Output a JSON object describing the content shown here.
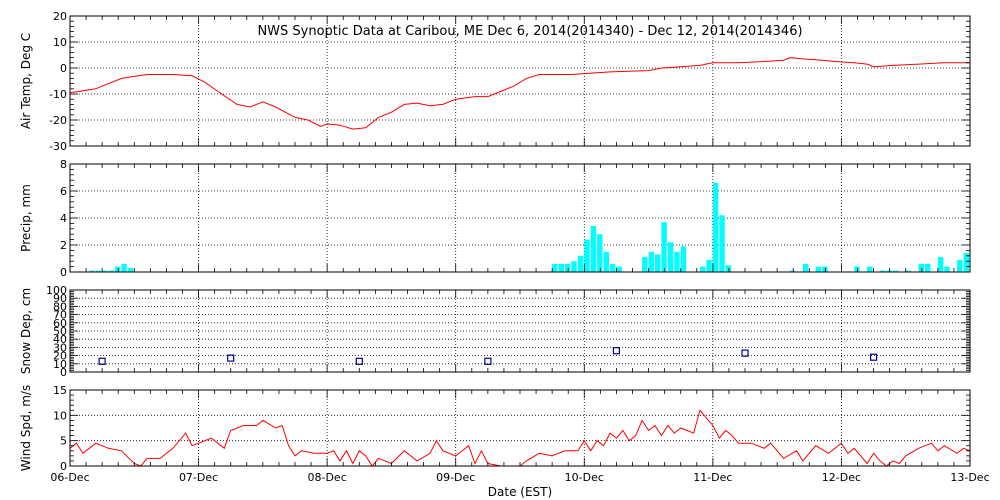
{
  "chart_data": {
    "type": "multi-panel",
    "title": "NWS Synoptic Data at Caribou, ME   Dec  6, 2014(2014340) - Dec 12, 2014(2014346)",
    "xlabel": "Date (EST)",
    "x_ticks": [
      "06-Dec",
      "07-Dec",
      "08-Dec",
      "09-Dec",
      "10-Dec",
      "11-Dec",
      "12-Dec",
      "13-Dec"
    ],
    "x_range_days": [
      0,
      7
    ],
    "grid": true,
    "panels": [
      {
        "id": "air_temp",
        "type": "line",
        "ylabel": "Air Temp, Deg C",
        "ylim": [
          -30,
          20
        ],
        "yticks": [
          -30,
          -20,
          -10,
          0,
          10,
          20
        ],
        "color": "#ff0000",
        "points": [
          [
            0.0,
            -9.5
          ],
          [
            0.2,
            -8
          ],
          [
            0.4,
            -4
          ],
          [
            0.6,
            -2.5
          ],
          [
            0.8,
            -2.5
          ],
          [
            0.95,
            -3
          ],
          [
            1.05,
            -5.5
          ],
          [
            1.15,
            -9
          ],
          [
            1.3,
            -14
          ],
          [
            1.4,
            -15
          ],
          [
            1.5,
            -13
          ],
          [
            1.6,
            -15
          ],
          [
            1.75,
            -19
          ],
          [
            1.85,
            -20
          ],
          [
            1.95,
            -22.5
          ],
          [
            2.0,
            -21.5
          ],
          [
            2.1,
            -22
          ],
          [
            2.2,
            -23.5
          ],
          [
            2.3,
            -23
          ],
          [
            2.4,
            -19
          ],
          [
            2.5,
            -17
          ],
          [
            2.6,
            -14
          ],
          [
            2.7,
            -13.5
          ],
          [
            2.8,
            -14.5
          ],
          [
            2.9,
            -14
          ],
          [
            3.0,
            -12
          ],
          [
            3.15,
            -11
          ],
          [
            3.25,
            -11
          ],
          [
            3.3,
            -10
          ],
          [
            3.45,
            -7
          ],
          [
            3.55,
            -4
          ],
          [
            3.65,
            -2.5
          ],
          [
            3.9,
            -2.5
          ],
          [
            4.2,
            -1.5
          ],
          [
            4.5,
            -1
          ],
          [
            4.6,
            0
          ],
          [
            4.75,
            0.5
          ],
          [
            4.9,
            1
          ],
          [
            5.0,
            2
          ],
          [
            5.2,
            2
          ],
          [
            5.4,
            2.5
          ],
          [
            5.55,
            3
          ],
          [
            5.6,
            4
          ],
          [
            5.7,
            3.5
          ],
          [
            5.85,
            3
          ],
          [
            5.95,
            2.5
          ],
          [
            6.1,
            2
          ],
          [
            6.2,
            1.5
          ],
          [
            6.25,
            0.5
          ],
          [
            6.4,
            1
          ],
          [
            6.6,
            1.5
          ],
          [
            6.8,
            2
          ],
          [
            7.0,
            2
          ]
        ]
      },
      {
        "id": "precip",
        "type": "bar",
        "ylabel": "Precip, mm",
        "ylim": [
          0,
          8
        ],
        "yticks": [
          0,
          2,
          4,
          6,
          8
        ],
        "color": "#00ffff",
        "bar_width_days": 0.0417,
        "bars": [
          [
            0.15,
            0.1
          ],
          [
            0.2,
            0.1
          ],
          [
            0.25,
            0.1
          ],
          [
            0.3,
            0.1
          ],
          [
            0.35,
            0.4
          ],
          [
            0.4,
            0.6
          ],
          [
            0.45,
            0.3
          ],
          [
            3.75,
            0.6
          ],
          [
            3.8,
            0.6
          ],
          [
            3.85,
            0.6
          ],
          [
            3.9,
            0.8
          ],
          [
            3.95,
            1.2
          ],
          [
            4.0,
            2.4
          ],
          [
            4.05,
            3.4
          ],
          [
            4.1,
            2.8
          ],
          [
            4.15,
            1.5
          ],
          [
            4.2,
            0.6
          ],
          [
            4.25,
            0.4
          ],
          [
            4.45,
            1.1
          ],
          [
            4.5,
            1.5
          ],
          [
            4.55,
            1.3
          ],
          [
            4.6,
            3.7
          ],
          [
            4.65,
            2.2
          ],
          [
            4.7,
            1.5
          ],
          [
            4.75,
            1.9
          ],
          [
            4.9,
            0.4
          ],
          [
            4.95,
            0.9
          ],
          [
            5.0,
            6.6
          ],
          [
            5.05,
            4.2
          ],
          [
            5.1,
            0.5
          ],
          [
            5.6,
            0.1
          ],
          [
            5.7,
            0.6
          ],
          [
            5.8,
            0.4
          ],
          [
            5.85,
            0.4
          ],
          [
            6.1,
            0.4
          ],
          [
            6.2,
            0.4
          ],
          [
            6.3,
            0.1
          ],
          [
            6.35,
            0.1
          ],
          [
            6.4,
            0.1
          ],
          [
            6.5,
            0.1
          ],
          [
            6.6,
            0.6
          ],
          [
            6.65,
            0.6
          ],
          [
            6.75,
            1.1
          ],
          [
            6.8,
            0.4
          ],
          [
            6.9,
            0.9
          ],
          [
            6.95,
            1.4
          ]
        ]
      },
      {
        "id": "snow_depth",
        "type": "scatter",
        "ylabel": "Snow Dep, cm",
        "ylim": [
          0,
          100
        ],
        "yticks": [
          0,
          10,
          20,
          30,
          40,
          50,
          60,
          70,
          80,
          90,
          100
        ],
        "color": "#00008b",
        "points": [
          [
            0.25,
            13
          ],
          [
            1.25,
            17
          ],
          [
            2.25,
            13
          ],
          [
            3.25,
            13
          ],
          [
            4.25,
            26
          ],
          [
            5.25,
            23
          ],
          [
            6.25,
            18
          ]
        ]
      },
      {
        "id": "wind_speed",
        "type": "line",
        "ylabel": "Wind Spd, m/s",
        "ylim": [
          0,
          15
        ],
        "yticks": [
          0,
          5,
          10,
          15
        ],
        "color": "#ff0000",
        "points": [
          [
            0.0,
            3.5
          ],
          [
            0.05,
            4.5
          ],
          [
            0.1,
            2.5
          ],
          [
            0.15,
            3.5
          ],
          [
            0.2,
            4.5
          ],
          [
            0.3,
            3.5
          ],
          [
            0.4,
            3
          ],
          [
            0.5,
            0.5
          ],
          [
            0.55,
            0
          ],
          [
            0.6,
            1.5
          ],
          [
            0.7,
            1.5
          ],
          [
            0.8,
            3.5
          ],
          [
            0.9,
            6.5
          ],
          [
            0.95,
            4
          ],
          [
            1.0,
            4.5
          ],
          [
            1.1,
            5.5
          ],
          [
            1.2,
            3.5
          ],
          [
            1.25,
            7
          ],
          [
            1.35,
            8
          ],
          [
            1.45,
            8
          ],
          [
            1.5,
            9
          ],
          [
            1.6,
            7.5
          ],
          [
            1.65,
            8
          ],
          [
            1.7,
            4
          ],
          [
            1.75,
            2
          ],
          [
            1.8,
            3
          ],
          [
            1.9,
            2.5
          ],
          [
            2.0,
            2.5
          ],
          [
            2.05,
            3
          ],
          [
            2.1,
            1
          ],
          [
            2.15,
            3
          ],
          [
            2.2,
            0.5
          ],
          [
            2.25,
            3
          ],
          [
            2.3,
            2
          ],
          [
            2.35,
            0
          ],
          [
            2.4,
            1.5
          ],
          [
            2.5,
            0.5
          ],
          [
            2.6,
            3
          ],
          [
            2.7,
            1
          ],
          [
            2.8,
            2.5
          ],
          [
            2.85,
            5
          ],
          [
            2.9,
            3
          ],
          [
            3.0,
            2
          ],
          [
            3.1,
            4
          ],
          [
            3.15,
            0.5
          ],
          [
            3.2,
            3
          ],
          [
            3.25,
            0.5
          ],
          [
            3.35,
            0
          ],
          [
            3.5,
            0
          ],
          [
            3.55,
            1
          ],
          [
            3.65,
            2.5
          ],
          [
            3.75,
            2
          ],
          [
            3.85,
            3
          ],
          [
            3.95,
            3
          ],
          [
            4.0,
            5
          ],
          [
            4.05,
            3
          ],
          [
            4.1,
            5
          ],
          [
            4.15,
            4
          ],
          [
            4.2,
            6.5
          ],
          [
            4.25,
            5.5
          ],
          [
            4.3,
            7
          ],
          [
            4.35,
            5
          ],
          [
            4.4,
            6
          ],
          [
            4.45,
            9
          ],
          [
            4.5,
            7
          ],
          [
            4.55,
            8
          ],
          [
            4.6,
            6
          ],
          [
            4.65,
            8
          ],
          [
            4.7,
            6.5
          ],
          [
            4.75,
            7.5
          ],
          [
            4.8,
            7
          ],
          [
            4.85,
            6.5
          ],
          [
            4.9,
            11
          ],
          [
            4.95,
            9.5
          ],
          [
            5.0,
            8
          ],
          [
            5.05,
            5.5
          ],
          [
            5.1,
            7
          ],
          [
            5.15,
            6
          ],
          [
            5.2,
            4.5
          ],
          [
            5.3,
            4.5
          ],
          [
            5.4,
            3.5
          ],
          [
            5.45,
            4.5
          ],
          [
            5.5,
            3
          ],
          [
            5.55,
            1.5
          ],
          [
            5.65,
            3
          ],
          [
            5.7,
            1
          ],
          [
            5.8,
            4
          ],
          [
            5.9,
            2.5
          ],
          [
            6.0,
            4.5
          ],
          [
            6.05,
            2.5
          ],
          [
            6.1,
            3.5
          ],
          [
            6.15,
            2
          ],
          [
            6.2,
            0.5
          ],
          [
            6.25,
            2.5
          ],
          [
            6.3,
            1
          ],
          [
            6.35,
            0
          ],
          [
            6.4,
            1
          ],
          [
            6.45,
            0.5
          ],
          [
            6.5,
            2
          ],
          [
            6.6,
            3.5
          ],
          [
            6.7,
            4.5
          ],
          [
            6.75,
            3
          ],
          [
            6.8,
            4
          ],
          [
            6.9,
            2.5
          ],
          [
            6.95,
            3.5
          ],
          [
            7.0,
            3
          ]
        ]
      }
    ]
  }
}
